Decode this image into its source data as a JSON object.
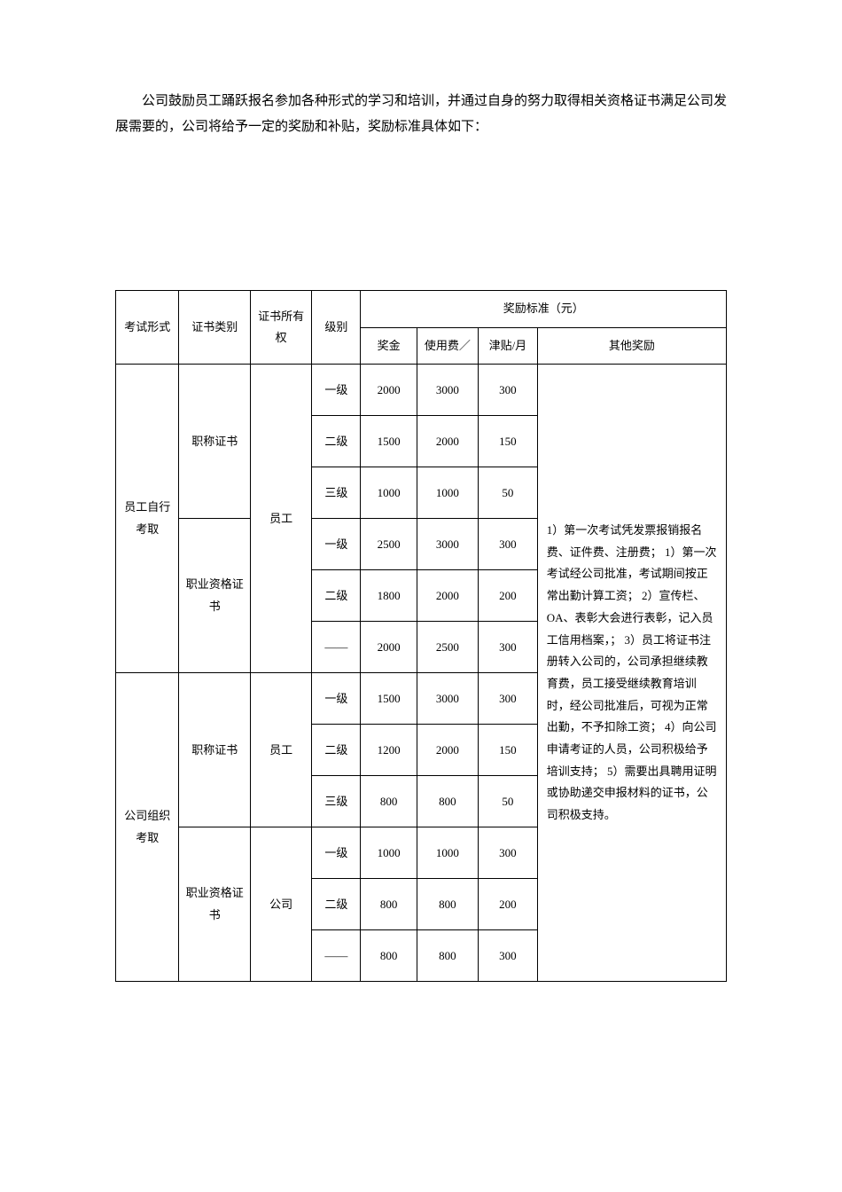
{
  "intro": "公司鼓励员工踊跃报名参加各种形式的学习和培训，并通过自身的努力取得相关资格证书满足公司发展需要的，公司将给予一定的奖励和补贴，奖励标准具体如下：",
  "headers": {
    "exam_form": "考试形式",
    "cert_category": "证书类别",
    "cert_owner": "证书所有权",
    "level": "级别",
    "reward_standard": "奖励标准（元）",
    "bonus": "奖金",
    "usage_fee": "使用费／",
    "allowance": "津贴/月",
    "other_reward": "其他奖励"
  },
  "groups": [
    {
      "exam_form": "员工自行考取",
      "subgroups": [
        {
          "cert_category": "职称证书",
          "cert_owner": "员工",
          "owner_rowspan": 6,
          "rows": [
            {
              "level": "一级",
              "bonus": "2000",
              "usage_fee": "3000",
              "allowance": "300"
            },
            {
              "level": "二级",
              "bonus": "1500",
              "usage_fee": "2000",
              "allowance": "150"
            },
            {
              "level": "三级",
              "bonus": "1000",
              "usage_fee": "1000",
              "allowance": "50"
            }
          ]
        },
        {
          "cert_category": "职业资格证书",
          "rows": [
            {
              "level": "一级",
              "bonus": "2500",
              "usage_fee": "3000",
              "allowance": "300"
            },
            {
              "level": "二级",
              "bonus": "1800",
              "usage_fee": "2000",
              "allowance": "200"
            },
            {
              "level": "——",
              "bonus": "2000",
              "usage_fee": "2500",
              "allowance": "300"
            }
          ]
        }
      ]
    },
    {
      "exam_form": "公司组织考取",
      "subgroups": [
        {
          "cert_category": "职称证书",
          "cert_owner": "员工",
          "owner_rowspan": 3,
          "rows": [
            {
              "level": "一级",
              "bonus": "1500",
              "usage_fee": "3000",
              "allowance": "300"
            },
            {
              "level": "二级",
              "bonus": "1200",
              "usage_fee": "2000",
              "allowance": "150"
            },
            {
              "level": "三级",
              "bonus": "800",
              "usage_fee": "800",
              "allowance": "50"
            }
          ]
        },
        {
          "cert_category": "职业资格证书",
          "cert_owner": "公司",
          "owner_rowspan": 3,
          "rows": [
            {
              "level": "一级",
              "bonus": "1000",
              "usage_fee": "1000",
              "allowance": "300"
            },
            {
              "level": "二级",
              "bonus": "800",
              "usage_fee": "800",
              "allowance": "200"
            },
            {
              "level": "——",
              "bonus": "800",
              "usage_fee": "800",
              "allowance": "300"
            }
          ]
        }
      ]
    }
  ],
  "other_text": "1）第一次考试凭发票报销报名费、证件费、注册费；\n1）第一次考试经公司批准，考试期间按正常出勤计算工资；\n2）宣传栏、OA、表彰大会进行表彰，记入员工信用档案，；\n3）员工将证书注册转入公司的，公司承担继续教育费，员工接受继续教育培训时，经公司批准后，可视为正常出勤，不予扣除工资；\n4）向公司申请考证的人员，公司积极给予培训支持；\n5）需要出具聘用证明或协助递交申报材料的证书，公司积极支持。"
}
